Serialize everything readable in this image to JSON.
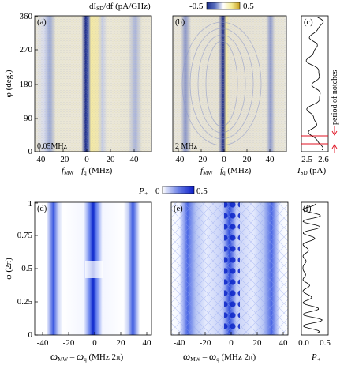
{
  "figure": {
    "top_colorbar": {
      "label": "dI_SD/df (pA/GHz)",
      "label_main": "dI",
      "label_sub": "SD",
      "label_rest": "/df (pA/GHz)",
      "min": "-0.5",
      "max": "0.5"
    },
    "bottom_colorbar": {
      "label_main": "P",
      "label_sub": "+",
      "min": "0",
      "max": "0.5"
    },
    "panels": {
      "a": {
        "label": "(a)",
        "note": "0.05MHz"
      },
      "b": {
        "label": "(b)",
        "note": "2 MHz"
      },
      "c": {
        "label": "(c)",
        "annotation": "period of notches"
      },
      "d": {
        "label": "(d)"
      },
      "e": {
        "label": "(e)"
      },
      "f": {
        "label": "(f)"
      }
    },
    "axes": {
      "top_y_label": "φ (deg.)",
      "top_y_ticks": [
        "0",
        "90",
        "180",
        "270",
        "360"
      ],
      "top_x_ticks": [
        "-40",
        "-20",
        "0",
        "20",
        "40"
      ],
      "top_x_label_f": "f",
      "top_x_label_MW": "MW",
      "top_x_label_q": "q",
      "top_x_label_unit": " (MHz)",
      "c_x_ticks": [
        "2.5",
        "2.6"
      ],
      "c_x_label_main": "I",
      "c_x_label_sub": "SD",
      "c_x_label_unit": " (pA)",
      "bottom_y_label": "φ (2π)",
      "bottom_y_ticks": [
        "0",
        "0.25",
        "0.5",
        "0.75",
        "1"
      ],
      "bottom_x_ticks": [
        "-40",
        "-20",
        "0",
        "20",
        "40"
      ],
      "bottom_x_label_w": "ω",
      "bottom_x_label_MW": "MW",
      "bottom_x_label_q": "q",
      "bottom_x_label_unit": " (MHz 2π)",
      "f_x_ticks": [
        "0.0",
        "0.5"
      ],
      "f_x_label_main": "P",
      "f_x_label_sub": "+"
    },
    "colors": {
      "accent": "#1030c8",
      "red_marker": "#e01020",
      "yellow": "#f7f0a0"
    }
  }
}
